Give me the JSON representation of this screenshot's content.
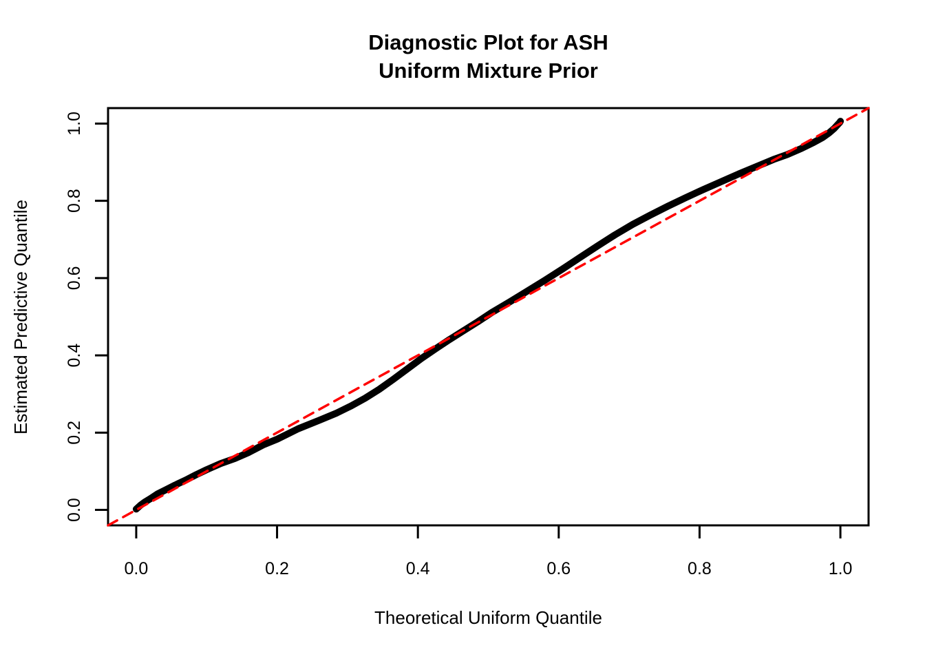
{
  "figure": {
    "title_line1": "Diagnostic Plot for ASH",
    "title_line2": "Uniform Mixture Prior",
    "xlabel": "Theoretical Uniform Quantile",
    "ylabel": "Estimated Predictive Quantile"
  },
  "colors": {
    "background": "#FFFFFF",
    "axis": "#000000",
    "quantile_curve": "#000000",
    "reference_line": "#FF0000"
  },
  "chart_data": {
    "type": "line",
    "title": "Diagnostic Plot for ASH\nUniform Mixture Prior",
    "xlabel": "Theoretical Uniform Quantile",
    "ylabel": "Estimated Predictive Quantile",
    "xlim": [
      -0.04,
      1.04
    ],
    "ylim": [
      -0.04,
      1.04
    ],
    "grid": false,
    "legend": "none",
    "x_ticks": [
      0.0,
      0.2,
      0.4,
      0.6,
      0.8,
      1.0
    ],
    "y_ticks": [
      0.0,
      0.2,
      0.4,
      0.6,
      0.8,
      1.0
    ],
    "x_tick_labels": [
      "0.0",
      "0.2",
      "0.4",
      "0.6",
      "0.8",
      "1.0"
    ],
    "y_tick_labels": [
      "0.0",
      "0.2",
      "0.4",
      "0.6",
      "0.8",
      "1.0"
    ],
    "series": [
      {
        "name": "estimated-predictive-quantile-curve",
        "type": "line",
        "color": "#000000",
        "width": 10,
        "dash": null,
        "points": [
          [
            0.0,
            0.002
          ],
          [
            0.006,
            0.012
          ],
          [
            0.012,
            0.02
          ],
          [
            0.02,
            0.029
          ],
          [
            0.03,
            0.041
          ],
          [
            0.042,
            0.052
          ],
          [
            0.055,
            0.064
          ],
          [
            0.07,
            0.077
          ],
          [
            0.085,
            0.091
          ],
          [
            0.1,
            0.104
          ],
          [
            0.12,
            0.12
          ],
          [
            0.14,
            0.133
          ],
          [
            0.16,
            0.149
          ],
          [
            0.18,
            0.168
          ],
          [
            0.2,
            0.183
          ],
          [
            0.23,
            0.21
          ],
          [
            0.26,
            0.232
          ],
          [
            0.285,
            0.251
          ],
          [
            0.305,
            0.269
          ],
          [
            0.325,
            0.289
          ],
          [
            0.345,
            0.312
          ],
          [
            0.365,
            0.338
          ],
          [
            0.385,
            0.365
          ],
          [
            0.405,
            0.392
          ],
          [
            0.425,
            0.417
          ],
          [
            0.445,
            0.441
          ],
          [
            0.465,
            0.464
          ],
          [
            0.485,
            0.487
          ],
          [
            0.505,
            0.511
          ],
          [
            0.53,
            0.538
          ],
          [
            0.555,
            0.566
          ],
          [
            0.58,
            0.594
          ],
          [
            0.605,
            0.623
          ],
          [
            0.63,
            0.653
          ],
          [
            0.655,
            0.683
          ],
          [
            0.68,
            0.712
          ],
          [
            0.705,
            0.739
          ],
          [
            0.73,
            0.763
          ],
          [
            0.755,
            0.786
          ],
          [
            0.78,
            0.808
          ],
          [
            0.805,
            0.829
          ],
          [
            0.83,
            0.849
          ],
          [
            0.855,
            0.869
          ],
          [
            0.88,
            0.888
          ],
          [
            0.905,
            0.907
          ],
          [
            0.925,
            0.92
          ],
          [
            0.945,
            0.936
          ],
          [
            0.962,
            0.951
          ],
          [
            0.975,
            0.964
          ],
          [
            0.984,
            0.976
          ],
          [
            0.991,
            0.987
          ],
          [
            0.996,
            0.997
          ],
          [
            0.999,
            1.003
          ],
          [
            1.0,
            1.006
          ]
        ]
      },
      {
        "name": "identity-reference-line",
        "type": "line",
        "color": "#FF0000",
        "width": 3.5,
        "dash": "15 10",
        "points": [
          [
            -0.04,
            -0.04
          ],
          [
            1.04,
            1.04
          ]
        ]
      }
    ]
  }
}
